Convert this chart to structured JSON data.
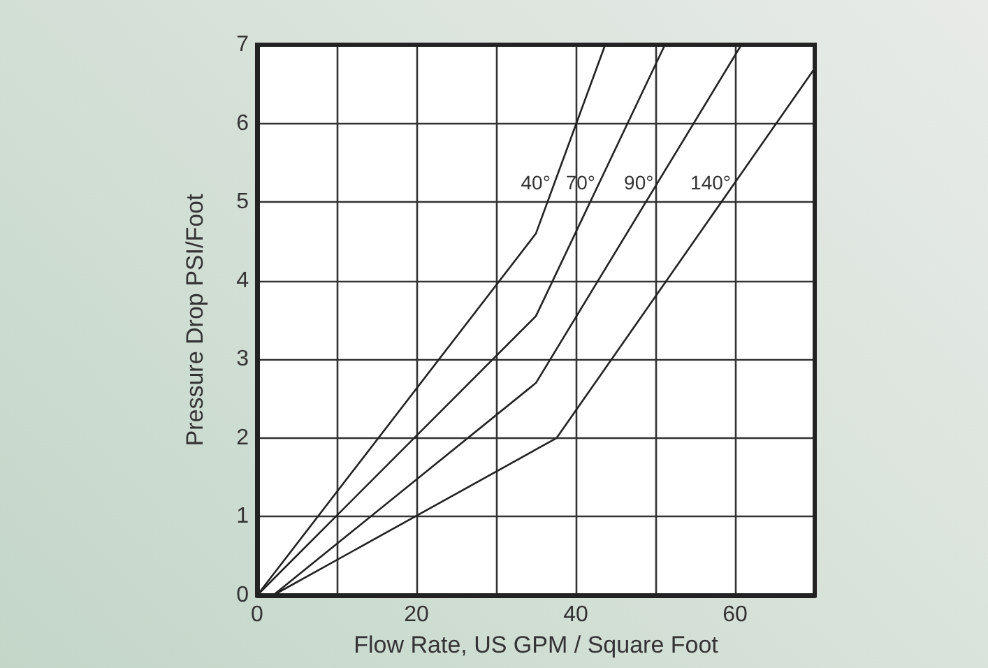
{
  "chart_data": {
    "type": "line",
    "xlabel": "Flow Rate, US GPM / Square Foot",
    "ylabel": "Pressure Drop PSI/Foot",
    "xlim": [
      0,
      70
    ],
    "ylim": [
      0,
      7
    ],
    "xticks": [
      0,
      {
        "value": 10,
        "label": null
      },
      20,
      {
        "value": 30,
        "label": null
      },
      40,
      {
        "value": 50,
        "label": null
      },
      60,
      {
        "value": 70,
        "label": null
      }
    ],
    "yticks": [
      0,
      1,
      2,
      3,
      4,
      5,
      6,
      7
    ],
    "grid": true,
    "legend": false,
    "marker": "none",
    "line_style": "solid",
    "series": [
      {
        "name": "40°",
        "color": "#222222",
        "x": [
          0,
          35,
          43.7
        ],
        "values": [
          0,
          4.6,
          7
        ]
      },
      {
        "name": "70°",
        "color": "#222222",
        "x": [
          0,
          35,
          51.2
        ],
        "values": [
          0,
          3.55,
          7
        ]
      },
      {
        "name": "90°",
        "color": "#222222",
        "x": [
          2,
          35,
          60.8
        ],
        "values": [
          0,
          2.7,
          7
        ]
      },
      {
        "name": "140°",
        "color": "#222222",
        "x": [
          2,
          37.6,
          70
        ],
        "values": [
          0,
          2,
          6.7
        ]
      }
    ]
  }
}
